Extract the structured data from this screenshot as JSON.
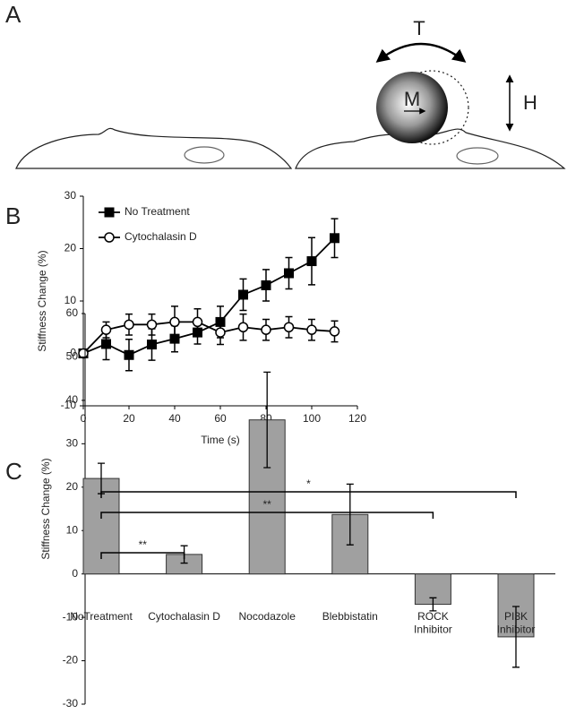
{
  "panels": [
    "A",
    "B",
    "C"
  ],
  "diagram": {
    "labels": [
      "T",
      "M",
      "H"
    ]
  },
  "chart_data": [
    {
      "type": "line",
      "xlabel": "Time (s)",
      "ylabel": "Stiffness Change (%)",
      "x": [
        0,
        10,
        20,
        30,
        40,
        50,
        60,
        70,
        80,
        90,
        100,
        110
      ],
      "xlim": [
        0,
        120
      ],
      "xticks": [
        0,
        20,
        40,
        60,
        80,
        100,
        120
      ],
      "ylim": [
        -10,
        30
      ],
      "yticks": [
        -10,
        0,
        10,
        20,
        30
      ],
      "legend": "upper left",
      "series": [
        {
          "name": "No Treatment",
          "color": "#000000",
          "marker": "square",
          "values": [
            0,
            1.8,
            -0.3,
            1.7,
            2.8,
            4,
            6,
            11.2,
            13,
            15.3,
            17.6,
            22
          ],
          "errors": [
            0,
            3,
            3,
            3,
            2.5,
            2.2,
            3,
            3,
            3,
            3,
            4.5,
            3.7
          ]
        },
        {
          "name": "Cytochalasin D",
          "color": "#ffffff",
          "marker": "circle",
          "values": [
            0,
            4.5,
            5.5,
            5.5,
            6,
            6,
            4,
            5,
            4.5,
            5,
            4.5,
            4.2
          ],
          "errors": [
            0,
            1.5,
            2,
            2,
            3,
            2.5,
            2.3,
            2.5,
            2,
            2,
            2,
            2
          ]
        }
      ]
    },
    {
      "type": "bar",
      "ylabel": "Stiffness Change (%)",
      "categories": [
        "NoTreatment",
        "Cytochalasin D",
        "Nocodazole",
        "Blebbistatin",
        "ROCK\nInhibitor",
        "PI3K\nInhibitor"
      ],
      "values": [
        22,
        4.5,
        35.5,
        13.7,
        -7,
        -14.5
      ],
      "errors": [
        3.5,
        2,
        11,
        7,
        1.5,
        7
      ],
      "color": "#a0a0a0",
      "ylim": [
        -30,
        60
      ],
      "yticks": [
        -30,
        -20,
        -10,
        0,
        10,
        20,
        30,
        40,
        50,
        60
      ],
      "annotations": [
        {
          "text": "**",
          "from": 0,
          "to": 1
        },
        {
          "text": "**",
          "from": 0,
          "to": 4
        },
        {
          "text": "*",
          "from": 0,
          "to": 5
        }
      ]
    }
  ]
}
